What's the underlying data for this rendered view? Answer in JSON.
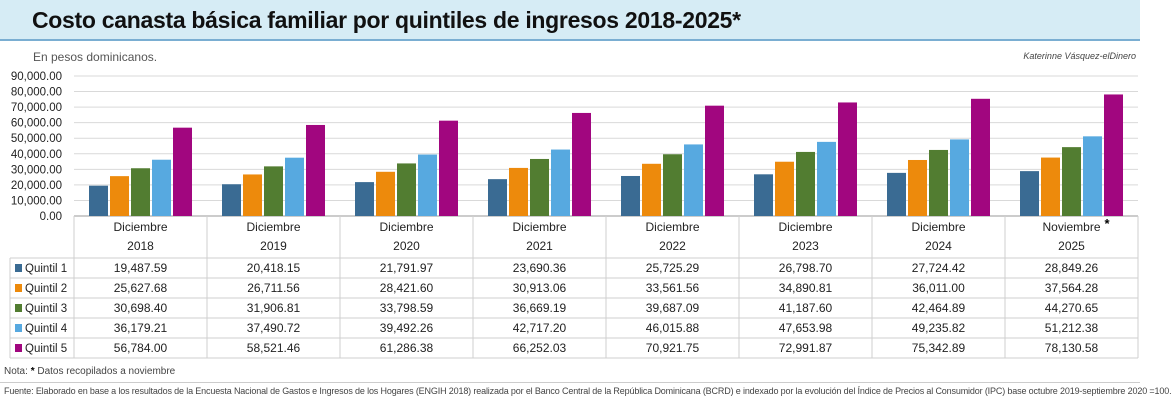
{
  "title": "Costo canasta básica familiar por quintiles de ingresos 2018-2025*",
  "subtitle": "En pesos dominicanos.",
  "credit": "Katerinne Vásquez-elDinero",
  "note_prefix": "Nota:",
  "note_star": "*",
  "note_text": "Datos recopilados a noviembre",
  "source": "Fuente: Elaborado en base a los resultados de la Encuesta Nacional de Gastos e Ingresos de los Hogares (ENGIH 2018) realizada por el Banco Central de la República Dominicana (BCRD) e indexado por la evolución del Índice de Precios al Consumidor (IPC) base octubre 2019-septiembre 2020 =100.",
  "chart_data": {
    "type": "bar",
    "categories": [
      {
        "month": "Diciembre",
        "year": "2018",
        "star": ""
      },
      {
        "month": "Diciembre",
        "year": "2019",
        "star": ""
      },
      {
        "month": "Diciembre",
        "year": "2020",
        "star": ""
      },
      {
        "month": "Diciembre",
        "year": "2021",
        "star": ""
      },
      {
        "month": "Diciembre",
        "year": "2022",
        "star": ""
      },
      {
        "month": "Diciembre",
        "year": "2023",
        "star": ""
      },
      {
        "month": "Diciembre",
        "year": "2024",
        "star": ""
      },
      {
        "month": "Noviembre",
        "year": "2025",
        "star": "*"
      }
    ],
    "yticks": [
      "0.00",
      "10,000.00",
      "20,000.00",
      "30,000.00",
      "40,000.00",
      "50,000.00",
      "60,000.00",
      "70,000.00",
      "80,000.00",
      "90,000.00"
    ],
    "ylim": [
      0,
      90000
    ],
    "series": [
      {
        "name": "Quintil 1",
        "color": "#3a6b93",
        "values": [
          19487.59,
          20418.15,
          21791.97,
          23690.36,
          25725.29,
          26798.7,
          27724.42,
          28849.26
        ],
        "labels": [
          "19,487.59",
          "20,418.15",
          "21,791.97",
          "23,690.36",
          "25,725.29",
          "26,798.70",
          "27,724.42",
          "28,849.26"
        ]
      },
      {
        "name": "Quintil 2",
        "color": "#ed8a0c",
        "values": [
          25627.68,
          26711.56,
          28421.6,
          30913.06,
          33561.56,
          34890.81,
          36011.0,
          37564.28
        ],
        "labels": [
          "25,627.68",
          "26,711.56",
          "28,421.60",
          "30,913.06",
          "33,561.56",
          "34,890.81",
          "36,011.00",
          "37,564.28"
        ]
      },
      {
        "name": "Quintil 3",
        "color": "#527d31",
        "values": [
          30698.4,
          31906.81,
          33798.59,
          36669.19,
          39687.09,
          41187.6,
          42464.89,
          44270.65
        ],
        "labels": [
          "30,698.40",
          "31,906.81",
          "33,798.59",
          "36,669.19",
          "39,687.09",
          "41,187.60",
          "42,464.89",
          "44,270.65"
        ]
      },
      {
        "name": "Quintil 4",
        "color": "#57a9e0",
        "values": [
          36179.21,
          37490.72,
          39492.26,
          42717.2,
          46015.88,
          47653.98,
          49235.82,
          51212.38
        ],
        "labels": [
          "36,179.21",
          "37,490.72",
          "39,492.26",
          "42,717.20",
          "46,015.88",
          "47,653.98",
          "49,235.82",
          "51,212.38"
        ]
      },
      {
        "name": "Quintil 5",
        "color": "#a1067f",
        "values": [
          56784.0,
          58521.46,
          61286.38,
          66252.03,
          70921.75,
          72991.87,
          75342.89,
          78130.58
        ],
        "labels": [
          "56,784.00",
          "58,521.46",
          "61,286.38",
          "66,252.03",
          "70,921.75",
          "72,991.87",
          "75,342.89",
          "78,130.58"
        ]
      }
    ]
  }
}
